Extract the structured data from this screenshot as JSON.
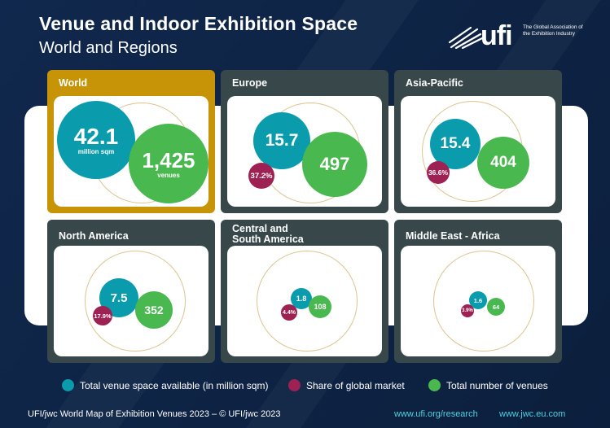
{
  "header": {
    "title": "Venue and Indoor Exhibition Space",
    "subtitle": "World and Regions"
  },
  "logo": {
    "mark": "ufi",
    "tagline": "The Global Association of the Exhibition Industry"
  },
  "panels": {
    "world": {
      "title": "World",
      "space": "42.1",
      "space_unit": "million sqm",
      "venues": "1,425",
      "venues_unit": "venues"
    },
    "europe": {
      "title": "Europe",
      "space": "15.7",
      "share": "37.2%",
      "venues": "497"
    },
    "asia": {
      "title": "Asia-Pacific",
      "space": "15.4",
      "share": "36.6%",
      "venues": "404"
    },
    "north_america": {
      "title": "North America",
      "space": "7.5",
      "share": "17.9%",
      "venues": "352"
    },
    "csa": {
      "title_line1": "Central and",
      "title_line2": "South America",
      "space": "1.8",
      "share": "4.4%",
      "venues": "108"
    },
    "mea": {
      "title": "Middle East - Africa",
      "space": "1.6",
      "share": "3.9%",
      "venues": "64"
    }
  },
  "legend": {
    "space": "Total venue space available (in million sqm)",
    "share": "Share of global market",
    "venues": "Total number of venues"
  },
  "footer": {
    "source": "UFI/jwc World Map of Exhibition Venues 2023 – © UFI/jwc 2023",
    "link1": "www.ufi.org/research",
    "link2": "www.jwc.eu.com"
  },
  "colors": {
    "background": "#0f2444",
    "teal": "#0a9bad",
    "green": "#49b84e",
    "red": "#9d2152",
    "world_panel": "#c69406",
    "region_panel": "#37474a"
  }
}
